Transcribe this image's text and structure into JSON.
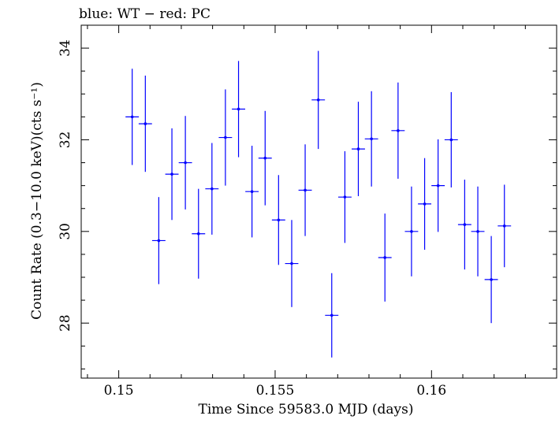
{
  "chart_data": {
    "type": "scatter",
    "title": "blue: WT − red: PC",
    "xlabel": "Time Since 59583.0 MJD (days)",
    "ylabel": "Count Rate (0.3−10.0 keV)(cts s⁻¹)",
    "xlim": [
      0.1488,
      0.164
    ],
    "ylim": [
      26.8,
      34.5
    ],
    "x_ticks": [
      0.15,
      0.155,
      0.16
    ],
    "x_tick_labels": [
      "0.15",
      "0.155",
      "0.16"
    ],
    "y_ticks": [
      28,
      30,
      32,
      34
    ],
    "y_tick_labels": [
      "28",
      "30",
      "32",
      "34"
    ],
    "grid": false,
    "x_half_width": 0.000213,
    "series": [
      {
        "name": "WT",
        "color": "#0000ff",
        "points": [
          {
            "x": 0.15043,
            "y": 32.5,
            "err": 1.05
          },
          {
            "x": 0.15085,
            "y": 32.35,
            "err": 1.05
          },
          {
            "x": 0.15128,
            "y": 29.8,
            "err": 0.95
          },
          {
            "x": 0.1517,
            "y": 31.25,
            "err": 1.0
          },
          {
            "x": 0.15213,
            "y": 31.5,
            "err": 1.02
          },
          {
            "x": 0.15255,
            "y": 29.95,
            "err": 0.98
          },
          {
            "x": 0.15298,
            "y": 30.93,
            "err": 1.0
          },
          {
            "x": 0.15341,
            "y": 32.05,
            "err": 1.05
          },
          {
            "x": 0.15383,
            "y": 32.67,
            "err": 1.05
          },
          {
            "x": 0.15426,
            "y": 30.87,
            "err": 1.0
          },
          {
            "x": 0.15468,
            "y": 31.6,
            "err": 1.03
          },
          {
            "x": 0.15511,
            "y": 30.25,
            "err": 0.98
          },
          {
            "x": 0.15553,
            "y": 29.3,
            "err": 0.95
          },
          {
            "x": 0.15596,
            "y": 30.9,
            "err": 1.0
          },
          {
            "x": 0.15638,
            "y": 32.87,
            "err": 1.07
          },
          {
            "x": 0.15681,
            "y": 28.17,
            "err": 0.92
          },
          {
            "x": 0.15723,
            "y": 30.75,
            "err": 1.0
          },
          {
            "x": 0.15766,
            "y": 31.8,
            "err": 1.03
          },
          {
            "x": 0.15808,
            "y": 32.02,
            "err": 1.04
          },
          {
            "x": 0.15851,
            "y": 29.43,
            "err": 0.96
          },
          {
            "x": 0.15893,
            "y": 32.2,
            "err": 1.05
          },
          {
            "x": 0.15936,
            "y": 30.0,
            "err": 0.98
          },
          {
            "x": 0.15978,
            "y": 30.6,
            "err": 1.0
          },
          {
            "x": 0.16021,
            "y": 31.0,
            "err": 1.01
          },
          {
            "x": 0.16063,
            "y": 32.0,
            "err": 1.04
          },
          {
            "x": 0.16106,
            "y": 30.15,
            "err": 0.98
          },
          {
            "x": 0.16148,
            "y": 30.0,
            "err": 0.98
          },
          {
            "x": 0.16191,
            "y": 28.95,
            "err": 0.95
          },
          {
            "x": 0.16233,
            "y": 30.12,
            "err": 0.9
          }
        ]
      }
    ]
  }
}
